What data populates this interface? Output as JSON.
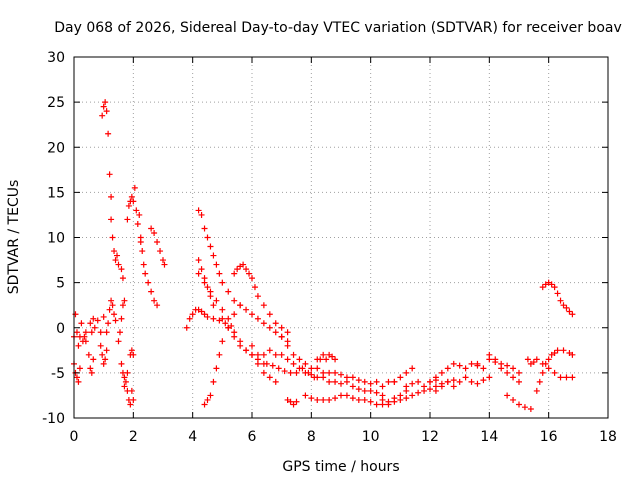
{
  "chart_data": {
    "type": "scatter",
    "title": "Day 068 of 2026, Sidereal Day-to-day VTEC variation (SDTVAR) for receiver boav",
    "xlabel": "GPS time / hours",
    "ylabel": "SDTVAR / TECUs",
    "xlim": [
      0,
      18
    ],
    "ylim": [
      -10,
      30
    ],
    "xticks": [
      "0",
      "2",
      "4",
      "6",
      "8",
      "10",
      "12",
      "14",
      "16",
      "18"
    ],
    "yticks": [
      "-10",
      "-5",
      "0",
      "5",
      "10",
      "15",
      "20",
      "25",
      "30"
    ],
    "grid": true,
    "marker": "plus",
    "color": "#ff0000",
    "series": [
      {
        "name": "s1",
        "x": [
          0.0,
          0.05,
          0.1,
          0.15,
          0.2,
          0.25,
          0.3,
          0.35,
          0.4
        ],
        "y": [
          -1.0,
          1.5,
          -0.5,
          -2.0,
          -1.0,
          0.5,
          -1.5,
          -1.0,
          -0.5
        ]
      },
      {
        "name": "s2",
        "x": [
          0.0,
          0.05,
          0.1,
          0.15,
          0.2
        ],
        "y": [
          -4.0,
          -5.0,
          -5.5,
          -6.0,
          -4.5
        ]
      },
      {
        "name": "s3",
        "x": [
          0.4,
          0.5,
          0.55,
          0.6,
          0.65
        ],
        "y": [
          -1.5,
          -3.0,
          -4.5,
          -5.0,
          -3.5
        ]
      },
      {
        "name": "s4",
        "x": [
          0.55,
          0.6,
          0.65,
          0.7,
          0.8,
          0.9,
          1.0
        ],
        "y": [
          0.5,
          -0.5,
          1.0,
          0.0,
          0.8,
          -0.5,
          1.2
        ]
      },
      {
        "name": "s5",
        "x": [
          0.9,
          0.95,
          1.0,
          1.05,
          1.1
        ],
        "y": [
          -2.0,
          -3.0,
          -4.0,
          -3.5,
          -2.5
        ]
      },
      {
        "name": "s6",
        "x": [
          0.95,
          1.0,
          1.05,
          1.1,
          1.15,
          1.2,
          1.25
        ],
        "y": [
          23.5,
          24.5,
          25.0,
          24.0,
          21.5,
          17.0,
          14.5
        ]
      },
      {
        "name": "s7",
        "x": [
          1.25,
          1.3,
          1.35,
          1.4,
          1.45,
          1.5,
          1.6,
          1.65
        ],
        "y": [
          12.0,
          10.0,
          8.5,
          7.5,
          8.0,
          7.0,
          6.5,
          5.5
        ]
      },
      {
        "name": "s8",
        "x": [
          1.1,
          1.15,
          1.2,
          1.25,
          1.3,
          1.35,
          1.4
        ],
        "y": [
          -0.5,
          0.5,
          2.0,
          3.0,
          2.5,
          1.5,
          0.8
        ]
      },
      {
        "name": "s9",
        "x": [
          1.5,
          1.55,
          1.6,
          1.65,
          1.7
        ],
        "y": [
          -1.5,
          -0.5,
          1.0,
          2.5,
          3.0
        ]
      },
      {
        "name": "s10",
        "x": [
          1.6,
          1.65,
          1.7,
          1.75,
          1.8
        ],
        "y": [
          -4.0,
          -5.0,
          -5.5,
          -6.0,
          -5.0
        ]
      },
      {
        "name": "s11",
        "x": [
          1.7,
          1.8,
          1.85,
          1.9,
          1.95,
          2.0
        ],
        "y": [
          -6.5,
          -7.0,
          -8.0,
          -8.5,
          -7.0,
          -8.0
        ]
      },
      {
        "name": "s12",
        "x": [
          1.8,
          1.85,
          1.9,
          1.95,
          2.0,
          2.05,
          2.1,
          2.15,
          2.2,
          2.25
        ],
        "y": [
          12.0,
          13.5,
          14.0,
          14.5,
          14.0,
          15.5,
          13.0,
          11.5,
          12.5,
          10.0
        ]
      },
      {
        "name": "s13",
        "x": [
          2.25,
          2.3,
          2.35,
          2.4,
          2.5,
          2.6,
          2.7,
          2.8
        ],
        "y": [
          9.5,
          8.5,
          7.0,
          6.0,
          5.0,
          4.0,
          3.0,
          2.5
        ]
      },
      {
        "name": "s14",
        "x": [
          2.6,
          2.7,
          2.8,
          2.9,
          3.0,
          3.05
        ],
        "y": [
          11.0,
          10.5,
          9.5,
          8.5,
          7.5,
          7.0
        ]
      },
      {
        "name": "s15",
        "x": [
          1.9,
          1.95,
          2.0
        ],
        "y": [
          -3.0,
          -2.5,
          -3.0
        ]
      },
      {
        "name": "s16",
        "x": [
          3.8,
          3.9,
          4.0,
          4.1,
          4.2,
          4.3,
          4.4,
          4.5,
          4.7,
          4.9,
          5.1,
          5.3
        ],
        "y": [
          0.0,
          1.0,
          1.5,
          2.0,
          2.0,
          1.8,
          1.5,
          1.2,
          1.0,
          0.8,
          0.5,
          0.2
        ]
      },
      {
        "name": "s17",
        "x": [
          4.2,
          4.4,
          4.6,
          4.8,
          5.0,
          5.2,
          5.4,
          5.6,
          5.8,
          6.0,
          6.2,
          6.4
        ],
        "y": [
          6.0,
          5.0,
          4.0,
          3.0,
          2.0,
          1.0,
          -0.5,
          -1.5,
          -2.5,
          -3.0,
          -3.5,
          -4.0
        ]
      },
      {
        "name": "s18",
        "x": [
          4.2,
          4.3,
          4.4,
          4.5,
          4.6,
          4.7,
          4.8,
          4.9,
          5.0,
          5.2,
          5.4,
          5.6,
          5.8,
          6.0,
          6.2,
          6.4,
          6.6,
          6.8,
          7.0,
          7.2
        ],
        "y": [
          13.0,
          12.5,
          11.0,
          10.0,
          9.0,
          8.0,
          7.0,
          6.0,
          5.0,
          4.0,
          3.0,
          2.5,
          2.0,
          1.5,
          1.0,
          0.5,
          0.0,
          -0.5,
          -1.0,
          -1.5
        ]
      },
      {
        "name": "s19",
        "x": [
          4.2,
          4.3,
          4.4,
          4.5,
          4.6,
          4.7
        ],
        "y": [
          7.5,
          6.5,
          5.5,
          4.5,
          3.5,
          2.5
        ]
      },
      {
        "name": "s20",
        "x": [
          4.4,
          4.5,
          4.6,
          4.7,
          4.8,
          4.9,
          5.0,
          5.2,
          5.4,
          5.6
        ],
        "y": [
          -8.5,
          -8.0,
          -7.5,
          -6.0,
          -4.5,
          -3.0,
          -1.5,
          0.0,
          1.5,
          2.5
        ]
      },
      {
        "name": "s21",
        "x": [
          5.4,
          5.5,
          5.6,
          5.7,
          5.8,
          5.9,
          6.0,
          6.1,
          6.2,
          6.4,
          6.6,
          6.8,
          7.0,
          7.2
        ],
        "y": [
          6.0,
          6.5,
          6.8,
          7.0,
          6.5,
          6.0,
          5.5,
          4.5,
          3.5,
          2.5,
          1.5,
          0.5,
          0.0,
          -0.5
        ]
      },
      {
        "name": "s22",
        "x": [
          5.0,
          5.2,
          5.4,
          5.6,
          5.8,
          6.0,
          6.2,
          6.4,
          6.6,
          6.8
        ],
        "y": [
          1.0,
          0.0,
          -1.0,
          -2.0,
          -2.5,
          -3.0,
          -4.0,
          -5.0,
          -5.5,
          -6.0
        ]
      },
      {
        "name": "s23",
        "x": [
          6.0,
          6.2,
          6.4,
          6.6,
          6.8
        ],
        "y": [
          -2.0,
          -3.0,
          -3.0,
          -2.5,
          -3.0
        ]
      },
      {
        "name": "s24",
        "x": [
          7.0,
          7.2,
          7.4,
          7.6,
          7.8,
          8.0,
          8.2,
          8.4,
          8.6,
          8.8,
          9.0,
          9.2,
          9.4,
          9.6,
          9.8,
          10.0,
          10.2,
          10.4,
          10.6,
          10.8
        ],
        "y": [
          -1.0,
          -2.0,
          -3.0,
          -3.5,
          -4.0,
          -4.5,
          -4.5,
          -5.0,
          -5.0,
          -5.0,
          -5.2,
          -5.5,
          -5.5,
          -5.8,
          -6.0,
          -6.2,
          -6.0,
          -6.5,
          -6.0,
          -6.0
        ]
      },
      {
        "name": "s25",
        "x": [
          7.0,
          7.2,
          7.4,
          7.6,
          7.8,
          8.0,
          8.2,
          8.4,
          8.6,
          8.8,
          9.0,
          9.2,
          9.4,
          9.6,
          9.8,
          10.0,
          10.2,
          10.4
        ],
        "y": [
          -3.0,
          -3.5,
          -4.0,
          -4.5,
          -5.0,
          -5.2,
          -5.5,
          -5.5,
          -6.0,
          -6.0,
          -6.2,
          -6.0,
          -6.5,
          -6.8,
          -7.0,
          -7.0,
          -7.2,
          -7.5
        ]
      },
      {
        "name": "s26",
        "x": [
          6.5,
          6.7,
          6.9,
          7.1,
          7.3,
          7.5,
          7.7,
          7.9,
          8.1
        ],
        "y": [
          -4.0,
          -4.2,
          -4.5,
          -4.8,
          -5.0,
          -5.0,
          -4.5,
          -5.0,
          -5.5
        ]
      },
      {
        "name": "s27",
        "x": [
          7.2,
          7.3,
          7.4,
          7.5
        ],
        "y": [
          -8.0,
          -8.2,
          -8.5,
          -8.2
        ]
      },
      {
        "name": "s28",
        "x": [
          7.8,
          8.0,
          8.2,
          8.4,
          8.6,
          8.8,
          9.0,
          9.2,
          9.4,
          9.6,
          9.8,
          10.0,
          10.2,
          10.4,
          10.6,
          10.8,
          11.0,
          11.2
        ],
        "y": [
          -7.5,
          -7.8,
          -8.0,
          -8.0,
          -8.0,
          -7.8,
          -7.5,
          -7.5,
          -7.8,
          -8.0,
          -8.0,
          -8.2,
          -8.5,
          -8.5,
          -8.2,
          -7.8,
          -7.5,
          -7.0
        ]
      },
      {
        "name": "s29",
        "x": [
          8.2,
          8.3,
          8.4,
          8.5,
          8.6,
          8.7,
          8.8
        ],
        "y": [
          -3.5,
          -3.5,
          -3.0,
          -3.5,
          -3.0,
          -3.2,
          -3.5
        ]
      },
      {
        "name": "s30",
        "x": [
          10.4,
          10.6,
          10.8,
          11.0,
          11.2,
          11.4,
          11.6,
          11.8,
          12.0,
          12.2,
          12.4,
          12.6,
          12.8
        ],
        "y": [
          -8.0,
          -8.5,
          -8.2,
          -8.0,
          -7.8,
          -7.5,
          -7.2,
          -7.0,
          -6.8,
          -6.5,
          -6.2,
          -6.0,
          -5.8
        ]
      },
      {
        "name": "s31",
        "x": [
          10.8,
          11.0,
          11.2,
          11.4
        ],
        "y": [
          -6.0,
          -5.5,
          -5.0,
          -4.5
        ]
      },
      {
        "name": "s32",
        "x": [
          11.2,
          11.4,
          11.6,
          11.8,
          12.0,
          12.2
        ],
        "y": [
          -6.5,
          -6.2,
          -6.0,
          -6.5,
          -6.0,
          -5.8
        ]
      },
      {
        "name": "s33",
        "x": [
          12.0,
          12.2,
          12.4,
          12.6,
          12.8,
          13.0,
          13.2,
          13.4,
          13.6
        ],
        "y": [
          -6.0,
          -5.5,
          -5.0,
          -4.5,
          -4.0,
          -4.2,
          -4.5,
          -4.0,
          -4.2
        ]
      },
      {
        "name": "s34",
        "x": [
          12.2,
          12.4,
          12.6,
          12.8,
          13.0,
          13.2,
          13.4,
          13.6,
          13.8,
          14.0
        ],
        "y": [
          -7.0,
          -6.5,
          -6.0,
          -6.5,
          -6.0,
          -5.5,
          -6.0,
          -6.2,
          -5.8,
          -5.5
        ]
      },
      {
        "name": "s35",
        "x": [
          13.6,
          13.8,
          14.0,
          14.2,
          14.4,
          14.6,
          14.8,
          15.0
        ],
        "y": [
          -4.0,
          -4.5,
          -3.5,
          -3.8,
          -4.5,
          -5.0,
          -5.5,
          -6.0
        ]
      },
      {
        "name": "s36",
        "x": [
          14.0,
          14.2,
          14.4,
          14.6,
          14.8,
          15.0
        ],
        "y": [
          -3.0,
          -3.5,
          -4.0,
          -4.2,
          -4.5,
          -5.0
        ]
      },
      {
        "name": "s37",
        "x": [
          14.6,
          14.8,
          15.0,
          15.2,
          15.4
        ],
        "y": [
          -7.5,
          -8.0,
          -8.5,
          -8.8,
          -9.0
        ]
      },
      {
        "name": "s38",
        "x": [
          15.3,
          15.4,
          15.5,
          15.6
        ],
        "y": [
          -3.5,
          -4.0,
          -3.8,
          -3.5
        ]
      },
      {
        "name": "s39",
        "x": [
          15.6,
          15.7,
          15.8,
          15.9,
          16.0,
          16.1,
          16.2,
          16.3,
          16.5,
          16.7,
          16.8
        ],
        "y": [
          -7.0,
          -6.0,
          -5.0,
          -4.0,
          -3.5,
          -3.0,
          -2.8,
          -2.5,
          -2.5,
          -2.8,
          -3.0
        ]
      },
      {
        "name": "s40",
        "x": [
          15.8,
          16.0,
          16.2,
          16.4,
          16.6,
          16.8
        ],
        "y": [
          -4.0,
          -4.5,
          -5.0,
          -5.5,
          -5.5,
          -5.5
        ]
      },
      {
        "name": "s41",
        "x": [
          15.8,
          15.9,
          16.0,
          16.1,
          16.2,
          16.3,
          16.4,
          16.5,
          16.6,
          16.7,
          16.8
        ],
        "y": [
          4.5,
          4.8,
          5.0,
          4.8,
          4.5,
          3.8,
          3.0,
          2.5,
          2.2,
          1.8,
          1.5
        ]
      }
    ]
  }
}
